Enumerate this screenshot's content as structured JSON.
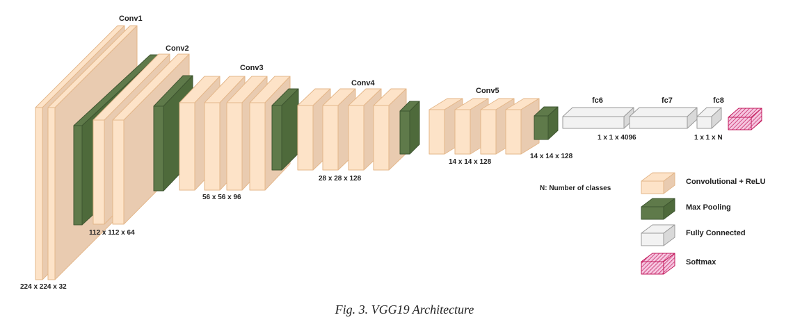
{
  "colors": {
    "conv": "#fde3c8",
    "conv_side": "#e9cbb0",
    "conv_edge": "#e4b78a",
    "pool": "#5f7a4a",
    "pool_side": "#4e6a3b",
    "pool_edge": "#3e5530",
    "fc": "#f2f2f2",
    "fc_side": "#d9d9d9",
    "fc_edge": "#9a9a9a",
    "softmax": "#f2a7cf",
    "softmax_edge": "#c2185b"
  },
  "stages": {
    "conv1": "Conv1",
    "conv2": "Conv2",
    "conv3": "Conv3",
    "conv4": "Conv4",
    "conv5": "Conv5",
    "fc6": "fc6",
    "fc7": "fc7",
    "fc8": "fc8"
  },
  "dims": {
    "conv1": "224 x 224 x 32",
    "conv2": "112 x 112 x 64",
    "conv3": "56 x 56 x 96",
    "conv4": "28 x 28 x 128",
    "conv5": "14 x 14 x 128",
    "pool5": "14 x 14 x 128",
    "fc67": "1 x 1 x 4096",
    "fc8": "1 x 1 x N"
  },
  "note": "N: Number of classes",
  "legend": {
    "conv": "Convolutional + ReLU",
    "pool": "Max Pooling",
    "fc": "Fully Connected",
    "softmax": "Softmax"
  },
  "caption": "Fig. 3. VGG19 Architecture"
}
